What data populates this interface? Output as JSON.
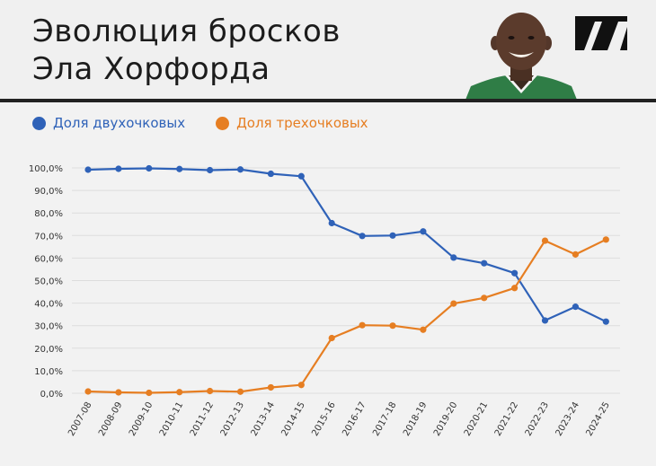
{
  "header": {
    "title_line1": "Эволюция бросков",
    "title_line2": "Эла Хорфорда"
  },
  "colors": {
    "two_pt": "#2f62b8",
    "three_pt": "#e67e22",
    "grid": "#dddddd",
    "rule": "#222222"
  },
  "chart_data": {
    "type": "line",
    "title": "Эволюция бросков Эла Хорфорда",
    "xlabel": "",
    "ylabel": "",
    "x": [
      "2007-08",
      "2008-09",
      "2009-10",
      "2010-11",
      "2011-12",
      "2012-13",
      "2013-14",
      "2014-15",
      "2015-16",
      "2016-17",
      "2017-18",
      "2018-19",
      "2019-20",
      "2020-21",
      "2021-22",
      "2022-23",
      "2023-24",
      "2024-25"
    ],
    "ylim": [
      0,
      100
    ],
    "yticks": [
      "0,0%",
      "10,0%",
      "20,0%",
      "30,0%",
      "40,0%",
      "50,0%",
      "60,0%",
      "70,0%",
      "80,0%",
      "90,0%",
      "100,0%"
    ],
    "grid": true,
    "legend": "top-left",
    "series": [
      {
        "name": "Доля двухочковых",
        "color": "#2f62b8",
        "values": [
          99.2,
          99.6,
          99.8,
          99.5,
          99.0,
          99.3,
          97.4,
          96.3,
          75.5,
          69.8,
          70.0,
          71.8,
          60.2,
          57.7,
          53.3,
          32.3,
          38.4,
          31.8
        ]
      },
      {
        "name": "Доля трехочковых",
        "color": "#e67e22",
        "values": [
          0.8,
          0.4,
          0.2,
          0.5,
          1.0,
          0.7,
          2.6,
          3.7,
          24.5,
          30.2,
          30.0,
          28.2,
          39.8,
          42.3,
          46.7,
          67.7,
          61.6,
          68.2
        ]
      }
    ]
  }
}
